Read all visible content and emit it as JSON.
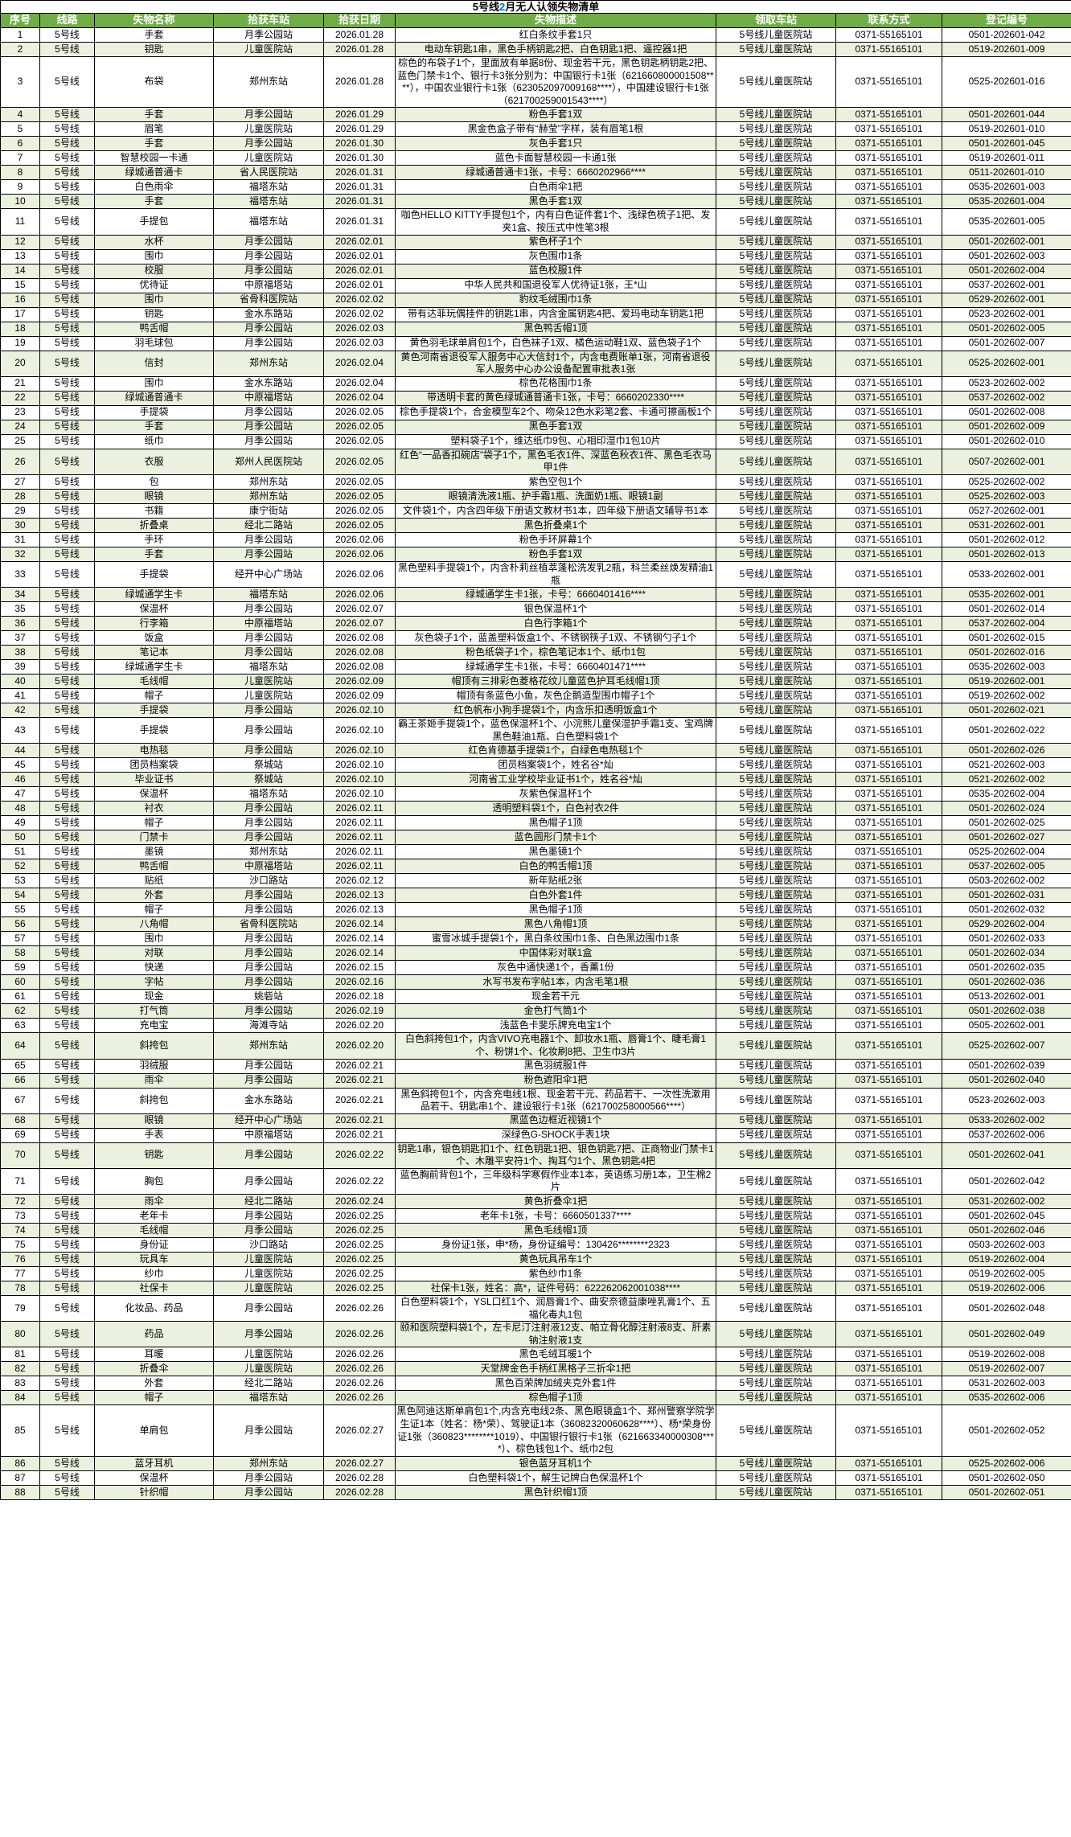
{
  "title": {
    "parts": [
      "5号线",
      "2",
      "月无人认领失物清单"
    ],
    "accent_color": "#0070c0"
  },
  "colors": {
    "header_bg": "#71ad47",
    "header_text": "#ffffff",
    "alt_row_bg": "#ebf1de",
    "border": "#000000"
  },
  "table": {
    "columns": [
      "序号",
      "线路",
      "失物名称",
      "拾获车站",
      "拾获日期",
      "失物描述",
      "领取车站",
      "联系方式",
      "登记编号"
    ],
    "col_keys": [
      "no",
      "line",
      "item",
      "found-station",
      "found-date",
      "description",
      "pickup-station",
      "contact",
      "reg-no"
    ],
    "rows": [
      [
        "1",
        "5号线",
        "手套",
        "月季公园站",
        "2026.01.28",
        "红白条纹手套1只",
        "5号线儿童医院站",
        "0371-55165101",
        "0501-202601-042"
      ],
      [
        "2",
        "5号线",
        "钥匙",
        "儿童医院站",
        "2026.01.28",
        "电动车钥匙1串，黑色手柄钥匙2把、白色钥匙1把、遥控器1把",
        "5号线儿童医院站",
        "0371-55165101",
        "0519-202601-009"
      ],
      [
        "3",
        "5号线",
        "布袋",
        "郑州东站",
        "2026.01.28",
        "棕色的布袋子1个，里面放有单据8份、现金若干元，黑色钥匙柄钥匙2把、蓝色门禁卡1个、银行卡3张分别为：中国银行卡1张（621660800001508****），中国农业银行卡1张（623052097009168****），中国建设银行卡1张（621700259001543****）",
        "5号线儿童医院站",
        "0371-55165101",
        "0525-202601-016"
      ],
      [
        "4",
        "5号线",
        "手套",
        "月季公园站",
        "2026.01.29",
        "粉色手套1双",
        "5号线儿童医院站",
        "0371-55165101",
        "0501-202601-044"
      ],
      [
        "5",
        "5号线",
        "眉笔",
        "儿童医院站",
        "2026.01.29",
        "黑金色盒子带有“赫莹”字样，装有眉笔1根",
        "5号线儿童医院站",
        "0371-55165101",
        "0519-202601-010"
      ],
      [
        "6",
        "5号线",
        "手套",
        "月季公园站",
        "2026.01.30",
        "灰色手套1只",
        "5号线儿童医院站",
        "0371-55165101",
        "0501-202601-045"
      ],
      [
        "7",
        "5号线",
        "智慧校园一卡通",
        "儿童医院站",
        "2026.01.30",
        "蓝色卡面智慧校园一卡通1张",
        "5号线儿童医院站",
        "0371-55165101",
        "0519-202601-011"
      ],
      [
        "8",
        "5号线",
        "绿城通普通卡",
        "省人民医院站",
        "2026.01.31",
        "绿城通普通卡1张，卡号：6660202966****",
        "5号线儿童医院站",
        "0371-55165101",
        "0511-202601-010"
      ],
      [
        "9",
        "5号线",
        "白色雨伞",
        "福塔东站",
        "2026.01.31",
        "白色雨伞1把",
        "5号线儿童医院站",
        "0371-55165101",
        "0535-202601-003"
      ],
      [
        "10",
        "5号线",
        "手套",
        "福塔东站",
        "2026.01.31",
        "黑色手套1双",
        "5号线儿童医院站",
        "0371-55165101",
        "0535-202601-004"
      ],
      [
        "11",
        "5号线",
        "手提包",
        "福塔东站",
        "2026.01.31",
        "咖色HELLO KITTY手提包1个，内有白色证件套1个、浅绿色梳子1把、发夹1盒、按压式中性笔3根",
        "5号线儿童医院站",
        "0371-55165101",
        "0535-202601-005"
      ],
      [
        "12",
        "5号线",
        "水杯",
        "月季公园站",
        "2026.02.01",
        "紫色杯子1个",
        "5号线儿童医院站",
        "0371-55165101",
        "0501-202602-001"
      ],
      [
        "13",
        "5号线",
        "围巾",
        "月季公园站",
        "2026.02.01",
        "灰色围巾1条",
        "5号线儿童医院站",
        "0371-55165101",
        "0501-202602-003"
      ],
      [
        "14",
        "5号线",
        "校服",
        "月季公园站",
        "2026.02.01",
        "蓝色校服1件",
        "5号线儿童医院站",
        "0371-55165101",
        "0501-202602-004"
      ],
      [
        "15",
        "5号线",
        "优待证",
        "中原福塔站",
        "2026.02.01",
        "中华人民共和国退役军人优待证1张，王*山",
        "5号线儿童医院站",
        "0371-55165101",
        "0537-202602-001"
      ],
      [
        "16",
        "5号线",
        "围巾",
        "省骨科医院站",
        "2026.02.02",
        "豹纹毛绒围巾1条",
        "5号线儿童医院站",
        "0371-55165101",
        "0529-202602-001"
      ],
      [
        "17",
        "5号线",
        "钥匙",
        "金水东路站",
        "2026.02.02",
        "带有达菲玩偶挂件的钥匙1串，内含金属钥匙4把、爱玛电动车钥匙1把",
        "5号线儿童医院站",
        "0371-55165101",
        "0523-202602-001"
      ],
      [
        "18",
        "5号线",
        "鸭舌帽",
        "月季公园站",
        "2026.02.03",
        "黑色鸭舌帽1顶",
        "5号线儿童医院站",
        "0371-55165101",
        "0501-202602-005"
      ],
      [
        "19",
        "5号线",
        "羽毛球包",
        "月季公园站",
        "2026.02.03",
        "黄色羽毛球单肩包1个，白色袜子1双、橘色运动鞋1双、蓝色袋子1个",
        "5号线儿童医院站",
        "0371-55165101",
        "0501-202602-007"
      ],
      [
        "20",
        "5号线",
        "信封",
        "郑州东站",
        "2026.02.04",
        "黄色河南省退役军人服务中心大信封1个，内含电费账单1张，河南省退役军人服务中心办公设备配置审批表1张",
        "5号线儿童医院站",
        "0371-55165101",
        "0525-202602-001"
      ],
      [
        "21",
        "5号线",
        "围巾",
        "金水东路站",
        "2026.02.04",
        "棕色花格围巾1条",
        "5号线儿童医院站",
        "0371-55165101",
        "0523-202602-002"
      ],
      [
        "22",
        "5号线",
        "绿城通普通卡",
        "中原福塔站",
        "2026.02.04",
        "带透明卡套的黄色绿城通普通卡1张，卡号：6660202330****",
        "5号线儿童医院站",
        "0371-55165101",
        "0537-202602-002"
      ],
      [
        "23",
        "5号线",
        "手提袋",
        "月季公园站",
        "2026.02.05",
        "棕色手提袋1个，合金模型车2个、吻朵12色水彩笔2套、卡通可擦画板1个",
        "5号线儿童医院站",
        "0371-55165101",
        "0501-202602-008"
      ],
      [
        "24",
        "5号线",
        "手套",
        "月季公园站",
        "2026.02.05",
        "黑色手套1双",
        "5号线儿童医院站",
        "0371-55165101",
        "0501-202602-009"
      ],
      [
        "25",
        "5号线",
        "纸巾",
        "月季公园站",
        "2026.02.05",
        "塑料袋子1个，维达纸巾9包、心相印湿巾1包10片",
        "5号线儿童医院站",
        "0371-55165101",
        "0501-202602-010"
      ],
      [
        "26",
        "5号线",
        "衣服",
        "郑州人民医院站",
        "2026.02.05",
        "红色“一品香扣碗店”袋子1个，黑色毛衣1件、深蓝色秋衣1件、黑色毛衣马甲1件",
        "5号线儿童医院站",
        "0371-55165101",
        "0507-202602-001"
      ],
      [
        "27",
        "5号线",
        "包",
        "郑州东站",
        "2026.02.05",
        "紫色空包1个",
        "5号线儿童医院站",
        "0371-55165101",
        "0525-202602-002"
      ],
      [
        "28",
        "5号线",
        "眼镜",
        "郑州东站",
        "2026.02.05",
        "眼镜清洗液1瓶、护手霜1瓶、洗面奶1瓶、眼镜1副",
        "5号线儿童医院站",
        "0371-55165101",
        "0525-202602-003"
      ],
      [
        "29",
        "5号线",
        "书籍",
        "康宁街站",
        "2026.02.05",
        "文件袋1个，内含四年级下册语文教材书1本，四年级下册语文辅导书1本",
        "5号线儿童医院站",
        "0371-55165101",
        "0527-202602-001"
      ],
      [
        "30",
        "5号线",
        "折叠桌",
        "经北二路站",
        "2026.02.05",
        "黑色折叠桌1个",
        "5号线儿童医院站",
        "0371-55165101",
        "0531-202602-001"
      ],
      [
        "31",
        "5号线",
        "手环",
        "月季公园站",
        "2026.02.06",
        "粉色手环屏幕1个",
        "5号线儿童医院站",
        "0371-55165101",
        "0501-202602-012"
      ],
      [
        "32",
        "5号线",
        "手套",
        "月季公园站",
        "2026.02.06",
        "粉色手套1双",
        "5号线儿童医院站",
        "0371-55165101",
        "0501-202602-013"
      ],
      [
        "33",
        "5号线",
        "手提袋",
        "经开中心广场站",
        "2026.02.06",
        "黑色塑料手提袋1个，内含朴莉丝植萃蓬松洗发乳2瓶，科兰柔丝焕发精油1瓶",
        "5号线儿童医院站",
        "0371-55165101",
        "0533-202602-001"
      ],
      [
        "34",
        "5号线",
        "绿城通学生卡",
        "福塔东站",
        "2026.02.06",
        "绿城通学生卡1张，卡号：6660401416****",
        "5号线儿童医院站",
        "0371-55165101",
        "0535-202602-001"
      ],
      [
        "35",
        "5号线",
        "保温杯",
        "月季公园站",
        "2026.02.07",
        "银色保温杯1个",
        "5号线儿童医院站",
        "0371-55165101",
        "0501-202602-014"
      ],
      [
        "36",
        "5号线",
        "行李箱",
        "中原福塔站",
        "2026.02.07",
        "白色行李箱1个",
        "5号线儿童医院站",
        "0371-55165101",
        "0537-202602-004"
      ],
      [
        "37",
        "5号线",
        "饭盒",
        "月季公园站",
        "2026.02.08",
        "灰色袋子1个，蓝盖塑料饭盒1个、不锈钢筷子1双、不锈钢勺子1个",
        "5号线儿童医院站",
        "0371-55165101",
        "0501-202602-015"
      ],
      [
        "38",
        "5号线",
        "笔记本",
        "月季公园站",
        "2026.02.08",
        "粉色纸袋子1个，棕色笔记本1个、纸巾1包",
        "5号线儿童医院站",
        "0371-55165101",
        "0501-202602-016"
      ],
      [
        "39",
        "5号线",
        "绿城通学生卡",
        "福塔东站",
        "2026.02.08",
        "绿城通学生卡1张，卡号：6660401471****",
        "5号线儿童医院站",
        "0371-55165101",
        "0535-202602-003"
      ],
      [
        "40",
        "5号线",
        "毛线帽",
        "儿童医院站",
        "2026.02.09",
        "帽顶有三排彩色菱格花纹儿童蓝色护耳毛线帽1顶",
        "5号线儿童医院站",
        "0371-55165101",
        "0519-202602-001"
      ],
      [
        "41",
        "5号线",
        "帽子",
        "儿童医院站",
        "2026.02.09",
        "帽顶有条蓝色小鱼，灰色企鹅造型围巾帽子1个",
        "5号线儿童医院站",
        "0371-55165101",
        "0519-202602-002"
      ],
      [
        "42",
        "5号线",
        "手提袋",
        "月季公园站",
        "2026.02.10",
        "红色帆布小狗手提袋1个，内含乐扣透明饭盒1个",
        "5号线儿童医院站",
        "0371-55165101",
        "0501-202602-021"
      ],
      [
        "43",
        "5号线",
        "手提袋",
        "月季公园站",
        "2026.02.10",
        "霸王茶姬手提袋1个，蓝色保温杯1个、小浣熊儿童保湿护手霜1支、宝鸡牌黑色鞋油1瓶、白色塑料袋1个",
        "5号线儿童医院站",
        "0371-55165101",
        "0501-202602-022"
      ],
      [
        "44",
        "5号线",
        "电热毯",
        "月季公园站",
        "2026.02.10",
        "红色肯德基手提袋1个，白绿色电热毯1个",
        "5号线儿童医院站",
        "0371-55165101",
        "0501-202602-026"
      ],
      [
        "45",
        "5号线",
        "团员档案袋",
        "祭城站",
        "2026.02.10",
        "团员档案袋1个，姓名谷*灿",
        "5号线儿童医院站",
        "0371-55165101",
        "0521-202602-003"
      ],
      [
        "46",
        "5号线",
        "毕业证书",
        "祭城站",
        "2026.02.10",
        "河南省工业学校毕业证书1个，姓名谷*灿",
        "5号线儿童医院站",
        "0371-55165101",
        "0521-202602-002"
      ],
      [
        "47",
        "5号线",
        "保温杯",
        "福塔东站",
        "2026.02.10",
        "灰紫色保温杯1个",
        "5号线儿童医院站",
        "0371-55165101",
        "0535-202602-004"
      ],
      [
        "48",
        "5号线",
        "衬衣",
        "月季公园站",
        "2026.02.11",
        "透明塑料袋1个，白色衬衣2件",
        "5号线儿童医院站",
        "0371-55165101",
        "0501-202602-024"
      ],
      [
        "49",
        "5号线",
        "帽子",
        "月季公园站",
        "2026.02.11",
        "黑色帽子1顶",
        "5号线儿童医院站",
        "0371-55165101",
        "0501-202602-025"
      ],
      [
        "50",
        "5号线",
        "门禁卡",
        "月季公园站",
        "2026.02.11",
        "蓝色圆形门禁卡1个",
        "5号线儿童医院站",
        "0371-55165101",
        "0501-202602-027"
      ],
      [
        "51",
        "5号线",
        "墨镜",
        "郑州东站",
        "2026.02.11",
        "黑色墨镜1个",
        "5号线儿童医院站",
        "0371-55165101",
        "0525-202602-004"
      ],
      [
        "52",
        "5号线",
        "鸭舌帽",
        "中原福塔站",
        "2026.02.11",
        "白色的鸭舌帽1顶",
        "5号线儿童医院站",
        "0371-55165101",
        "0537-202602-005"
      ],
      [
        "53",
        "5号线",
        "贴纸",
        "沙口路站",
        "2026.02.12",
        "新年贴纸2张",
        "5号线儿童医院站",
        "0371-55165101",
        "0503-202602-002"
      ],
      [
        "54",
        "5号线",
        "外套",
        "月季公园站",
        "2026.02.13",
        "白色外套1件",
        "5号线儿童医院站",
        "0371-55165101",
        "0501-202602-031"
      ],
      [
        "55",
        "5号线",
        "帽子",
        "月季公园站",
        "2026.02.13",
        "黑色帽子1顶",
        "5号线儿童医院站",
        "0371-55165101",
        "0501-202602-032"
      ],
      [
        "56",
        "5号线",
        "八角帽",
        "省骨科医院站",
        "2026.02.14",
        "黑色八角帽1顶",
        "5号线儿童医院站",
        "0371-55165101",
        "0529-202602-004"
      ],
      [
        "57",
        "5号线",
        "围巾",
        "月季公园站",
        "2026.02.14",
        "蜜雪冰城手提袋1个，黑白条纹围巾1条、白色黑边围巾1条",
        "5号线儿童医院站",
        "0371-55165101",
        "0501-202602-033"
      ],
      [
        "58",
        "5号线",
        "对联",
        "月季公园站",
        "2026.02.14",
        "中国体彩对联1盒",
        "5号线儿童医院站",
        "0371-55165101",
        "0501-202602-034"
      ],
      [
        "59",
        "5号线",
        "快递",
        "月季公园站",
        "2026.02.15",
        "灰色中通快递1个，香薰1份",
        "5号线儿童医院站",
        "0371-55165101",
        "0501-202602-035"
      ],
      [
        "60",
        "5号线",
        "字帖",
        "月季公园站",
        "2026.02.16",
        "水写书发布字帖1本，内含毛笔1根",
        "5号线儿童医院站",
        "0371-55165101",
        "0501-202602-036"
      ],
      [
        "61",
        "5号线",
        "现金",
        "姚砦站",
        "2026.02.18",
        "现金若干元",
        "5号线儿童医院站",
        "0371-55165101",
        "0513-202602-001"
      ],
      [
        "62",
        "5号线",
        "打气筒",
        "月季公园站",
        "2026.02.19",
        "金色打气筒1个",
        "5号线儿童医院站",
        "0371-55165101",
        "0501-202602-038"
      ],
      [
        "63",
        "5号线",
        "充电宝",
        "海滩寺站",
        "2026.02.20",
        "浅蓝色卡斐乐牌充电宝1个",
        "5号线儿童医院站",
        "0371-55165101",
        "0505-202602-001"
      ],
      [
        "64",
        "5号线",
        "斜挎包",
        "郑州东站",
        "2026.02.20",
        "白色斜挎包1个，内含VIVO充电器1个、卸妆水1瓶、唇膏1个、睫毛膏1个、粉饼1个、化妆刷8把、卫生巾3片",
        "5号线儿童医院站",
        "0371-55165101",
        "0525-202602-007"
      ],
      [
        "65",
        "5号线",
        "羽绒服",
        "月季公园站",
        "2026.02.21",
        "黑色羽绒服1件",
        "5号线儿童医院站",
        "0371-55165101",
        "0501-202602-039"
      ],
      [
        "66",
        "5号线",
        "雨伞",
        "月季公园站",
        "2026.02.21",
        "粉色遮阳伞1把",
        "5号线儿童医院站",
        "0371-55165101",
        "0501-202602-040"
      ],
      [
        "67",
        "5号线",
        "斜挎包",
        "金水东路站",
        "2026.02.21",
        "黑色斜挎包1个，内含充电线1根、现金若干元、药品若干、一次性洗漱用品若干、钥匙串1个、建设银行卡1张（621700258000566****）",
        "5号线儿童医院站",
        "0371-55165101",
        "0523-202602-003"
      ],
      [
        "68",
        "5号线",
        "眼镜",
        "经开中心广场站",
        "2026.02.21",
        "黑蓝色边框近视镜1个",
        "5号线儿童医院站",
        "0371-55165101",
        "0533-202602-002"
      ],
      [
        "69",
        "5号线",
        "手表",
        "中原福塔站",
        "2026.02.21",
        "深绿色G-SHOCK手表1块",
        "5号线儿童医院站",
        "0371-55165101",
        "0537-202602-006"
      ],
      [
        "70",
        "5号线",
        "钥匙",
        "月季公园站",
        "2026.02.22",
        "钥匙1串，银色钥匙扣1个、红色钥匙1把、银色钥匙7把、正商物业门禁卡1个、木雕平安符1个、掏耳勺1个、黑色钥匙4把",
        "5号线儿童医院站",
        "0371-55165101",
        "0501-202602-041"
      ],
      [
        "71",
        "5号线",
        "胸包",
        "月季公园站",
        "2026.02.22",
        "蓝色胸前背包1个，三年级科学寒假作业本1本，英语练习册1本，卫生棉2片",
        "5号线儿童医院站",
        "0371-55165101",
        "0501-202602-042"
      ],
      [
        "72",
        "5号线",
        "雨伞",
        "经北二路站",
        "2026.02.24",
        "黄色折叠伞1把",
        "5号线儿童医院站",
        "0371-55165101",
        "0531-202602-002"
      ],
      [
        "73",
        "5号线",
        "老年卡",
        "月季公园站",
        "2026.02.25",
        "老年卡1张，卡号：6660501337****",
        "5号线儿童医院站",
        "0371-55165101",
        "0501-202602-045"
      ],
      [
        "74",
        "5号线",
        "毛线帽",
        "月季公园站",
        "2026.02.25",
        "黑色毛线帽1顶",
        "5号线儿童医院站",
        "0371-55165101",
        "0501-202602-046"
      ],
      [
        "75",
        "5号线",
        "身份证",
        "沙口路站",
        "2026.02.25",
        "身份证1张，申*杨，身份证编号：130426********2323",
        "5号线儿童医院站",
        "0371-55165101",
        "0503-202602-003"
      ],
      [
        "76",
        "5号线",
        "玩具车",
        "儿童医院站",
        "2026.02.25",
        "黄色玩具吊车1个",
        "5号线儿童医院站",
        "0371-55165101",
        "0519-202602-004"
      ],
      [
        "77",
        "5号线",
        "纱巾",
        "儿童医院站",
        "2026.02.25",
        "紫色纱巾1条",
        "5号线儿童医院站",
        "0371-55165101",
        "0519-202602-005"
      ],
      [
        "78",
        "5号线",
        "社保卡",
        "儿童医院站",
        "2026.02.25",
        "社保卡1张，姓名：高*，证件号码：622262062001038****",
        "5号线儿童医院站",
        "0371-55165101",
        "0519-202602-006"
      ],
      [
        "79",
        "5号线",
        "化妆品、药品",
        "月季公园站",
        "2026.02.26",
        "白色塑料袋1个，YSL口红1个、润唇膏1个、曲安奈德益康唑乳膏1个、五福化毒丸1包",
        "5号线儿童医院站",
        "0371-55165101",
        "0501-202602-048"
      ],
      [
        "80",
        "5号线",
        "药品",
        "月季公园站",
        "2026.02.26",
        "颐和医院塑料袋1个，左卡尼汀注射液12支、帕立骨化醇注射液8支、肝素钠注射液1支",
        "5号线儿童医院站",
        "0371-55165101",
        "0501-202602-049"
      ],
      [
        "81",
        "5号线",
        "耳暖",
        "儿童医院站",
        "2026.02.26",
        "黑色毛绒耳暖1个",
        "5号线儿童医院站",
        "0371-55165101",
        "0519-202602-008"
      ],
      [
        "82",
        "5号线",
        "折叠伞",
        "儿童医院站",
        "2026.02.26",
        "天堂牌金色手柄红黑格子三折伞1把",
        "5号线儿童医院站",
        "0371-55165101",
        "0519-202602-007"
      ],
      [
        "83",
        "5号线",
        "外套",
        "经北二路站",
        "2026.02.26",
        "黑色百荣牌加绒夹克外套1件",
        "5号线儿童医院站",
        "0371-55165101",
        "0531-202602-003"
      ],
      [
        "84",
        "5号线",
        "帽子",
        "福塔东站",
        "2026.02.26",
        "棕色帽子1顶",
        "5号线儿童医院站",
        "0371-55165101",
        "0535-202602-006"
      ],
      [
        "85",
        "5号线",
        "单肩包",
        "月季公园站",
        "2026.02.27",
        "黑色阿迪达斯单肩包1个,内含充电线2条、黑色眼镜盒1个、郑州警察学院学生证1本（姓名：杨*荣）、驾驶证1本（36082320060628****）、杨*荣身份证1张（360823********1019）、中国银行银行卡1张（621663340000308****）、棕色钱包1个、纸巾2包",
        "5号线儿童医院站",
        "0371-55165101",
        "0501-202602-052"
      ],
      [
        "86",
        "5号线",
        "蓝牙耳机",
        "郑州东站",
        "2026.02.27",
        "银色蓝牙耳机1个",
        "5号线儿童医院站",
        "0371-55165101",
        "0525-202602-006"
      ],
      [
        "87",
        "5号线",
        "保温杯",
        "月季公园站",
        "2026.02.28",
        "白色塑料袋1个，解生记牌白色保温杯1个",
        "5号线儿童医院站",
        "0371-55165101",
        "0501-202602-050"
      ],
      [
        "88",
        "5号线",
        "针织帽",
        "月季公园站",
        "2026.02.28",
        "黑色针织帽1顶",
        "5号线儿童医院站",
        "0371-55165101",
        "0501-202602-051"
      ]
    ]
  }
}
